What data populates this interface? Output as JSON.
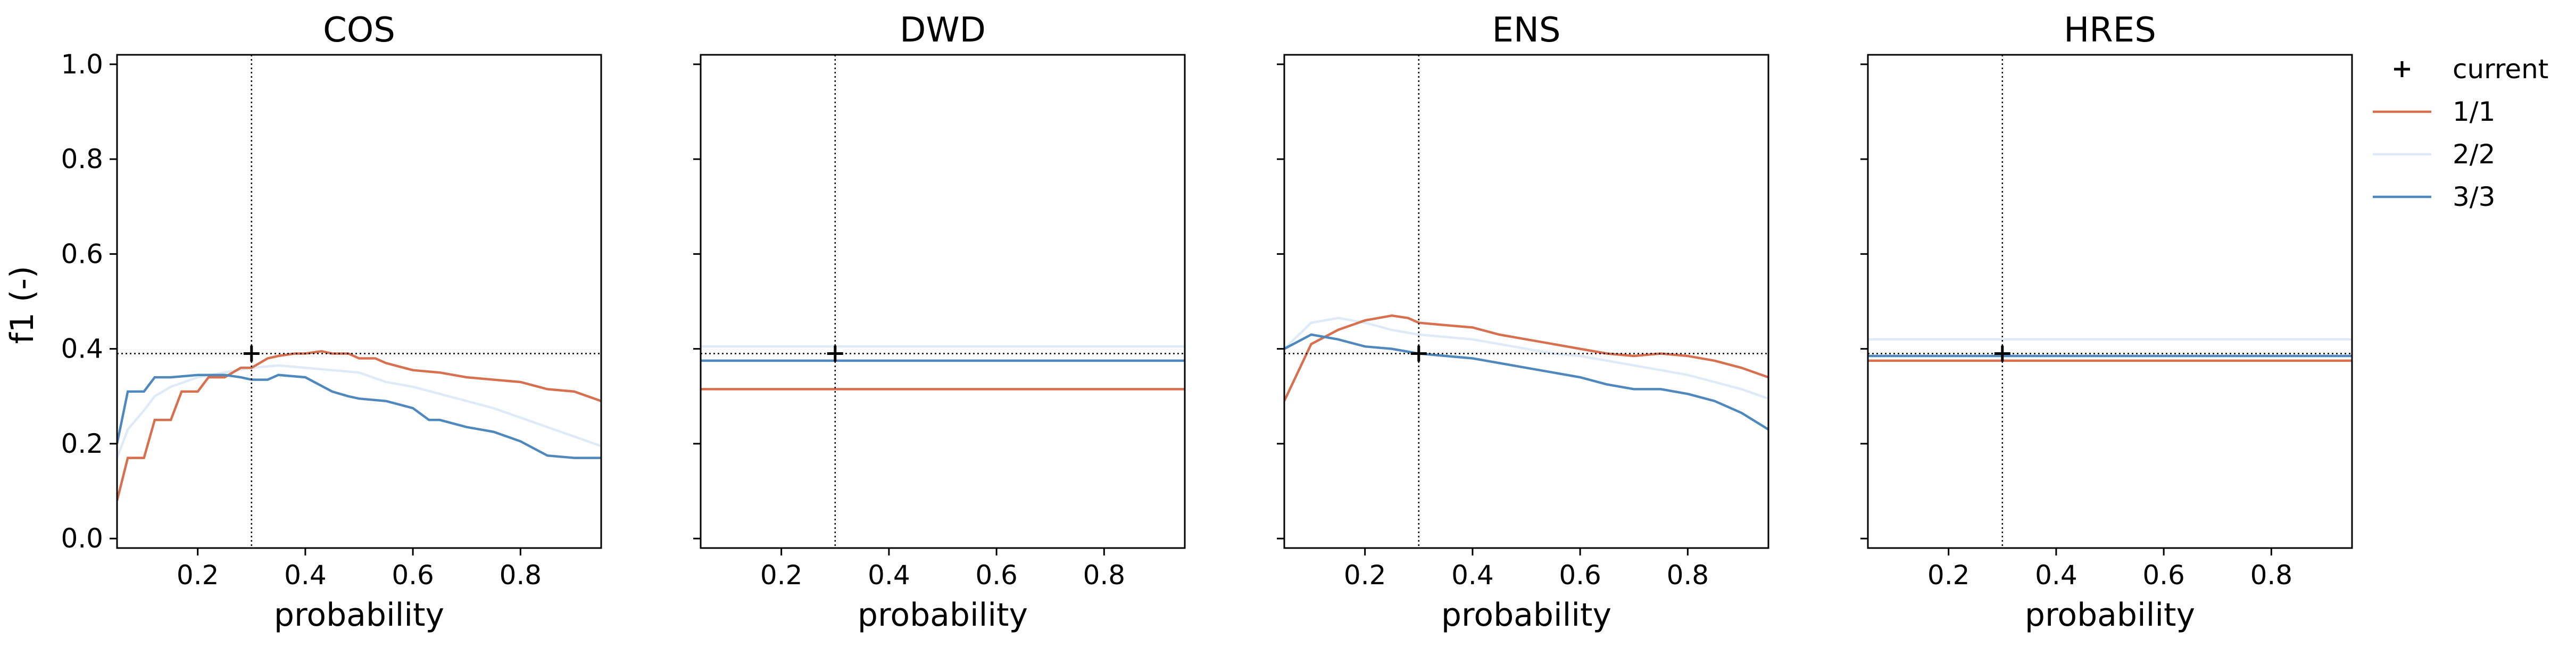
{
  "chart_data": {
    "type": "line",
    "ylabel": "f1 (-)",
    "xlabel": "probability",
    "xlim": [
      0.05,
      0.95
    ],
    "ylim": [
      -0.02,
      1.02
    ],
    "xticks": [
      "0.2",
      "0.4",
      "0.6",
      "0.8"
    ],
    "yticks": [
      "0.0",
      "0.2",
      "0.4",
      "0.6",
      "0.8",
      "1.0"
    ],
    "current_point": {
      "x": 0.3,
      "y": 0.39
    },
    "colors": {
      "1/1": "#d6704f",
      "2/2": "#deebf7",
      "3/3": "#4e88bd",
      "current": "#000000",
      "reference": "#000000"
    },
    "legend": {
      "placement": "outside right",
      "entries": [
        "current",
        "1/1",
        "2/2",
        "3/3"
      ]
    },
    "panels": [
      {
        "title": "COS",
        "series": [
          {
            "name": "1/1",
            "x": [
              0.05,
              0.07,
              0.1,
              0.12,
              0.15,
              0.17,
              0.2,
              0.22,
              0.25,
              0.28,
              0.3,
              0.33,
              0.35,
              0.38,
              0.4,
              0.43,
              0.45,
              0.48,
              0.5,
              0.53,
              0.55,
              0.6,
              0.65,
              0.7,
              0.75,
              0.8,
              0.85,
              0.9,
              0.95
            ],
            "y": [
              0.08,
              0.17,
              0.17,
              0.25,
              0.25,
              0.31,
              0.31,
              0.34,
              0.34,
              0.36,
              0.36,
              0.38,
              0.385,
              0.39,
              0.39,
              0.395,
              0.39,
              0.39,
              0.38,
              0.38,
              0.37,
              0.355,
              0.35,
              0.34,
              0.335,
              0.33,
              0.315,
              0.31,
              0.29
            ]
          },
          {
            "name": "2/2",
            "x": [
              0.05,
              0.07,
              0.1,
              0.12,
              0.15,
              0.2,
              0.25,
              0.3,
              0.35,
              0.4,
              0.45,
              0.5,
              0.55,
              0.6,
              0.65,
              0.7,
              0.75,
              0.8,
              0.85,
              0.9,
              0.95
            ],
            "y": [
              0.17,
              0.23,
              0.27,
              0.3,
              0.32,
              0.34,
              0.35,
              0.36,
              0.365,
              0.36,
              0.355,
              0.35,
              0.33,
              0.32,
              0.305,
              0.29,
              0.275,
              0.255,
              0.235,
              0.215,
              0.195
            ]
          },
          {
            "name": "3/3",
            "x": [
              0.05,
              0.07,
              0.1,
              0.12,
              0.15,
              0.2,
              0.25,
              0.28,
              0.3,
              0.33,
              0.35,
              0.4,
              0.45,
              0.48,
              0.5,
              0.55,
              0.6,
              0.63,
              0.65,
              0.7,
              0.75,
              0.8,
              0.85,
              0.9,
              0.95
            ],
            "y": [
              0.2,
              0.31,
              0.31,
              0.34,
              0.34,
              0.345,
              0.345,
              0.34,
              0.335,
              0.335,
              0.345,
              0.34,
              0.31,
              0.3,
              0.295,
              0.29,
              0.275,
              0.25,
              0.25,
              0.235,
              0.225,
              0.205,
              0.175,
              0.17,
              0.17
            ]
          }
        ],
        "reference_y": 0.39,
        "reference_x": 0.3
      },
      {
        "title": "DWD",
        "series": [
          {
            "name": "1/1",
            "x": [
              0.05,
              0.95
            ],
            "y": [
              0.315,
              0.315
            ]
          },
          {
            "name": "2/2",
            "x": [
              0.05,
              0.95
            ],
            "y": [
              0.405,
              0.405
            ]
          },
          {
            "name": "3/3",
            "x": [
              0.05,
              0.95
            ],
            "y": [
              0.375,
              0.375
            ]
          }
        ],
        "reference_y": 0.39,
        "reference_x": 0.3
      },
      {
        "title": "ENS",
        "series": [
          {
            "name": "1/1",
            "x": [
              0.05,
              0.1,
              0.15,
              0.2,
              0.25,
              0.28,
              0.3,
              0.35,
              0.4,
              0.45,
              0.5,
              0.55,
              0.6,
              0.65,
              0.7,
              0.75,
              0.8,
              0.85,
              0.9,
              0.95
            ],
            "y": [
              0.29,
              0.41,
              0.44,
              0.46,
              0.47,
              0.465,
              0.455,
              0.45,
              0.445,
              0.43,
              0.42,
              0.41,
              0.4,
              0.39,
              0.385,
              0.39,
              0.385,
              0.375,
              0.36,
              0.34
            ]
          },
          {
            "name": "2/2",
            "x": [
              0.05,
              0.1,
              0.15,
              0.2,
              0.25,
              0.3,
              0.35,
              0.4,
              0.45,
              0.5,
              0.55,
              0.6,
              0.65,
              0.7,
              0.75,
              0.8,
              0.85,
              0.9,
              0.95
            ],
            "y": [
              0.4,
              0.455,
              0.465,
              0.455,
              0.44,
              0.43,
              0.425,
              0.42,
              0.41,
              0.4,
              0.39,
              0.385,
              0.375,
              0.365,
              0.355,
              0.345,
              0.33,
              0.315,
              0.295
            ]
          },
          {
            "name": "3/3",
            "x": [
              0.05,
              0.1,
              0.15,
              0.2,
              0.25,
              0.3,
              0.35,
              0.4,
              0.45,
              0.5,
              0.55,
              0.6,
              0.65,
              0.7,
              0.75,
              0.8,
              0.85,
              0.9,
              0.95
            ],
            "y": [
              0.4,
              0.43,
              0.42,
              0.405,
              0.4,
              0.39,
              0.385,
              0.38,
              0.37,
              0.36,
              0.35,
              0.34,
              0.325,
              0.315,
              0.315,
              0.305,
              0.29,
              0.265,
              0.23
            ]
          }
        ],
        "reference_y": 0.39,
        "reference_x": 0.3
      },
      {
        "title": "HRES",
        "series": [
          {
            "name": "1/1",
            "x": [
              0.05,
              0.95
            ],
            "y": [
              0.375,
              0.375
            ]
          },
          {
            "name": "2/2",
            "x": [
              0.05,
              0.95
            ],
            "y": [
              0.42,
              0.42
            ]
          },
          {
            "name": "3/3",
            "x": [
              0.05,
              0.95
            ],
            "y": [
              0.385,
              0.385
            ]
          }
        ],
        "reference_y": 0.39,
        "reference_x": 0.3
      }
    ]
  }
}
